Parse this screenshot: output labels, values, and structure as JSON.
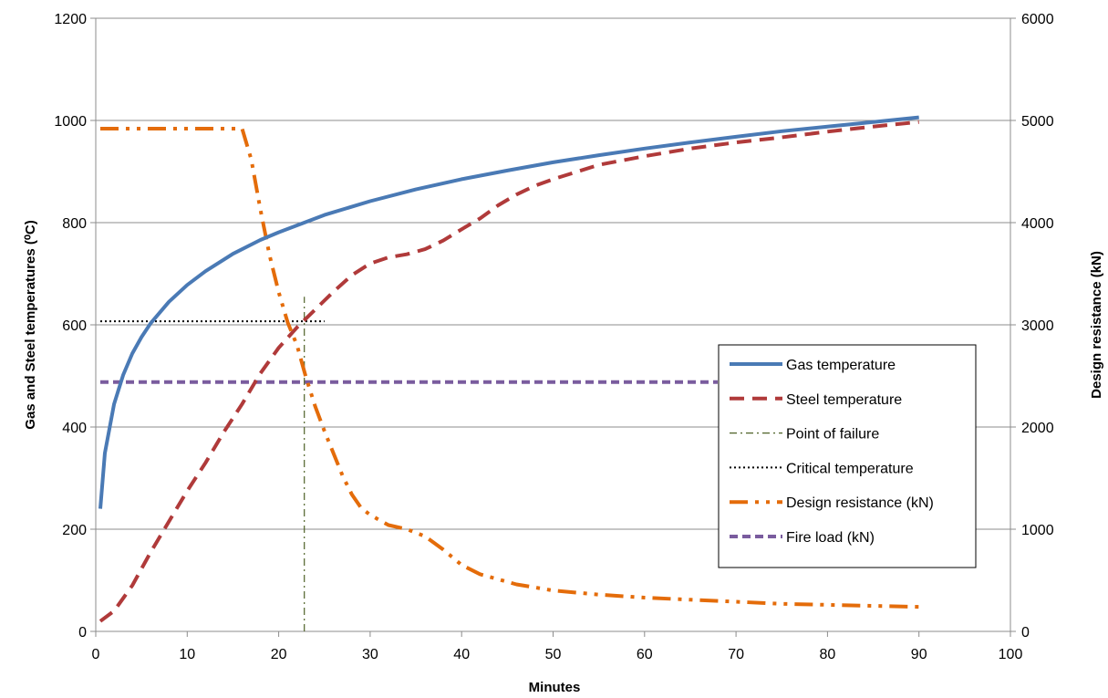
{
  "chart_data": {
    "type": "line",
    "xlabel": "Minutes",
    "ylabel": "Gas and Steel temperatures (⁰C)",
    "y2label": "Design resistance (kN)",
    "xlim": [
      0,
      100
    ],
    "ylim": [
      0,
      1200
    ],
    "y2lim": [
      0,
      6000
    ],
    "x_ticks": [
      "0",
      "10",
      "20",
      "30",
      "40",
      "50",
      "60",
      "70",
      "80",
      "90",
      "100"
    ],
    "y_ticks": [
      "0",
      "200",
      "400",
      "600",
      "800",
      "1000",
      "1200"
    ],
    "y2_ticks": [
      "0",
      "1000",
      "2000",
      "3000",
      "4000",
      "5000",
      "6000"
    ],
    "grid": "horizontal",
    "legend_position": "right",
    "series": [
      {
        "name": "Gas temperature",
        "axis": "left",
        "style": "solid",
        "color": "#4a7ab5",
        "x": [
          0.5,
          1,
          2,
          3,
          4,
          5,
          6,
          8,
          10,
          12,
          15,
          18,
          20,
          25,
          30,
          35,
          40,
          45,
          50,
          55,
          60,
          65,
          70,
          75,
          80,
          85,
          90
        ],
        "y": [
          240,
          349,
          445,
          502,
          544,
          576,
          603,
          645,
          678,
          705,
          739,
          766,
          781,
          815,
          842,
          865,
          885,
          902,
          918,
          932,
          945,
          957,
          968,
          979,
          988,
          997,
          1006
        ]
      },
      {
        "name": "Steel temperature",
        "axis": "left",
        "style": "dashed",
        "color": "#b03a3a",
        "x": [
          0.5,
          2,
          4,
          6,
          8,
          10,
          12,
          14,
          16,
          18,
          20,
          22,
          24,
          26,
          28,
          30,
          32,
          34,
          36,
          38,
          40,
          42,
          44,
          46,
          48,
          50,
          55,
          60,
          65,
          70,
          75,
          80,
          85,
          90
        ],
        "y": [
          20,
          40,
          90,
          155,
          215,
          275,
          330,
          390,
          445,
          505,
          555,
          595,
          630,
          665,
          697,
          720,
          732,
          738,
          748,
          765,
          787,
          808,
          834,
          855,
          872,
          885,
          913,
          930,
          945,
          957,
          967,
          978,
          988,
          997
        ]
      },
      {
        "name": "Point of failure",
        "axis": "left",
        "style": "dash-dot-thin",
        "color": "#4f6228",
        "x": [
          22.8,
          22.8
        ],
        "y": [
          0,
          655
        ]
      },
      {
        "name": "Critical temperature",
        "axis": "left",
        "style": "dotted",
        "color": "#000000",
        "x": [
          0.5,
          25
        ],
        "y": [
          607,
          607
        ]
      },
      {
        "name": "Design resistance (kN)",
        "axis": "right",
        "style": "dash-dot-dot",
        "color": "#e46c0a",
        "x": [
          0.5,
          5,
          10,
          15,
          16,
          17,
          18,
          19,
          20,
          21,
          22,
          23,
          24,
          25,
          26,
          27,
          28,
          29,
          30,
          32,
          34,
          36,
          38,
          40,
          42,
          44,
          46,
          48,
          50,
          55,
          60,
          65,
          70,
          75,
          80,
          85,
          90
        ],
        "y": [
          4920,
          4920,
          4920,
          4920,
          4920,
          4620,
          4130,
          3680,
          3320,
          3020,
          2800,
          2480,
          2200,
          1960,
          1740,
          1520,
          1340,
          1210,
          1140,
          1040,
          1000,
          930,
          800,
          650,
          560,
          510,
          460,
          430,
          400,
          360,
          330,
          310,
          290,
          270,
          260,
          250,
          240
        ]
      },
      {
        "name": "Fire load (kN)",
        "axis": "right",
        "style": "short-dash",
        "color": "#7a5c9e",
        "x": [
          0.5,
          68
        ],
        "y": [
          2440,
          2440
        ]
      }
    ]
  }
}
